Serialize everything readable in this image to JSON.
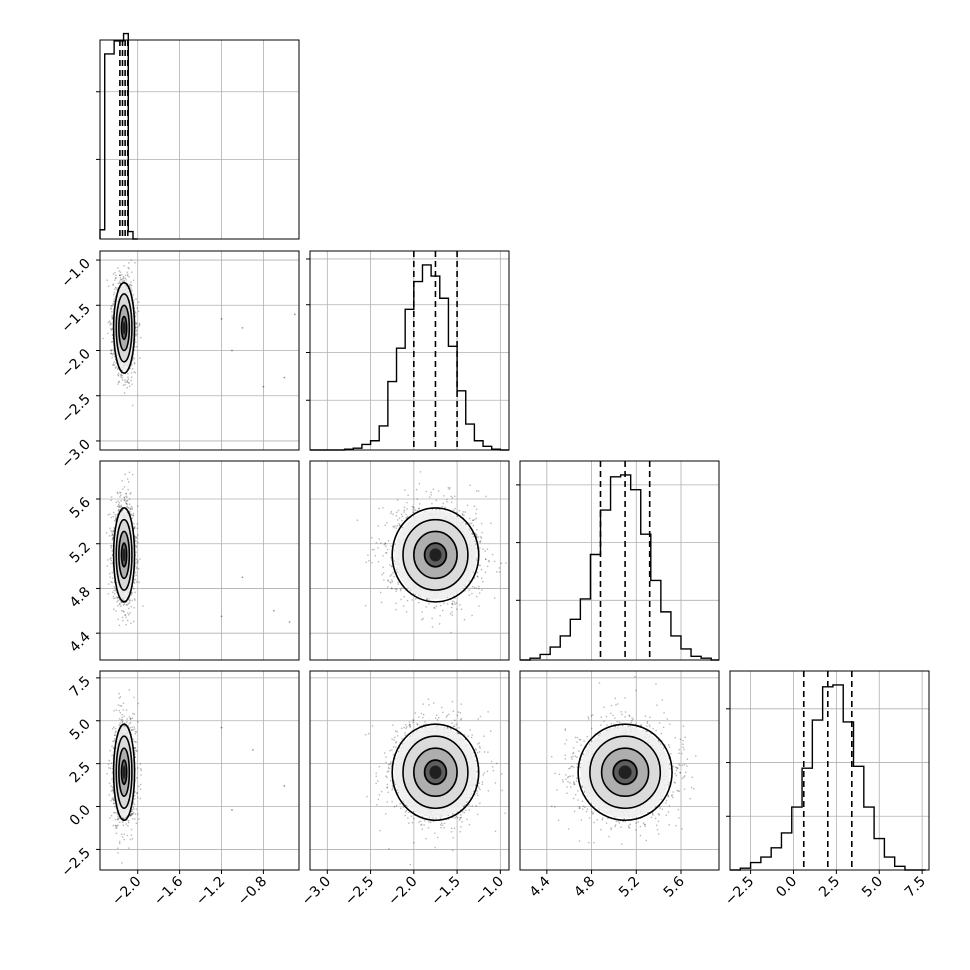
{
  "chart_data": {
    "type": "corner",
    "params": [
      {
        "xlim": [
          -2.36,
          -0.46
        ],
        "xticks": [
          "−2.0",
          "−1.6",
          "−1.2",
          "−0.8"
        ],
        "xtick_values": [
          -2.0,
          -1.6,
          -1.2,
          -0.8
        ]
      },
      {
        "xlim": [
          -3.2,
          -0.9
        ],
        "xticks": [
          "−3.0",
          "−2.5",
          "−2.0",
          "−1.5",
          "−1.0"
        ],
        "xtick_values": [
          -3.0,
          -2.5,
          -2.0,
          -1.5,
          -1.0
        ],
        "ylim": [
          -3.1,
          -0.9
        ],
        "yticks": [
          "−3.0",
          "−2.5",
          "−2.0",
          "−1.5",
          "−1.0"
        ],
        "ytick_values": [
          -3.0,
          -2.5,
          -2.0,
          -1.5,
          -1.0
        ]
      },
      {
        "xlim": [
          4.16,
          5.94
        ],
        "xticks": [
          "4.4",
          "4.8",
          "5.2",
          "5.6"
        ],
        "xtick_values": [
          4.4,
          4.8,
          5.2,
          5.6
        ],
        "ylim": [
          4.16,
          5.94
        ],
        "yticks": [
          "4.4",
          "4.8",
          "5.2",
          "5.6"
        ],
        "ytick_values": [
          4.4,
          4.8,
          5.2,
          5.6
        ]
      },
      {
        "xlim": [
          -3.7,
          7.9
        ],
        "xticks": [
          "−2.5",
          "0.0",
          "2.5",
          "5.0",
          "7.5"
        ],
        "xtick_values": [
          -2.5,
          0.0,
          2.5,
          5.0,
          7.5
        ],
        "ylim": [
          -3.7,
          7.9
        ],
        "yticks": [
          "−2.5",
          "0.0",
          "2.5",
          "5.0",
          "7.5"
        ],
        "ytick_values": [
          -2.5,
          0.0,
          2.5,
          5.0,
          7.5
        ]
      }
    ],
    "diagonal": [
      {
        "bin_edges": [
          -2.36,
          -2.315,
          -2.27,
          -2.225,
          -2.18,
          -2.135,
          -2.09,
          -2.045,
          -2.0
        ],
        "counts": [
          0.05,
          1.0,
          1.0,
          1.07,
          1.07,
          1.11,
          0.04,
          0.0
        ],
        "quantiles": [
          -2.17,
          -2.145,
          -2.12,
          -2.095
        ],
        "yticks_frac": [
          0.74,
          0.4
        ]
      },
      {
        "bin_edges": [
          -3.2,
          -3.1,
          -3.0,
          -2.9,
          -2.8,
          -2.7,
          -2.6,
          -2.5,
          -2.4,
          -2.3,
          -2.2,
          -2.1,
          -2.0,
          -1.9,
          -1.8,
          -1.7,
          -1.6,
          -1.5,
          -1.4,
          -1.3,
          -1.2,
          -1.1,
          -1.0,
          -0.9
        ],
        "counts": [
          0.0,
          0.0,
          0.0,
          0.0,
          0.004,
          0.01,
          0.03,
          0.05,
          0.13,
          0.37,
          0.55,
          0.76,
          0.91,
          1.0,
          0.94,
          0.82,
          0.56,
          0.32,
          0.14,
          0.05,
          0.02,
          0.004,
          0.0
        ],
        "quantiles": [
          -2.0,
          -1.75,
          -1.5
        ],
        "yticks_frac": [
          0.96,
          0.73,
          0.49,
          0.25
        ]
      },
      {
        "bin_edges": [
          4.16,
          4.25,
          4.34,
          4.43,
          4.52,
          4.61,
          4.7,
          4.79,
          4.88,
          4.97,
          5.06,
          5.15,
          5.24,
          5.33,
          5.42,
          5.51,
          5.6,
          5.69,
          5.78,
          5.87,
          5.94
        ],
        "counts": [
          0.0,
          0.01,
          0.03,
          0.07,
          0.13,
          0.22,
          0.33,
          0.57,
          0.81,
          0.99,
          1.0,
          0.92,
          0.68,
          0.43,
          0.26,
          0.13,
          0.06,
          0.02,
          0.01,
          0.0
        ],
        "quantiles": [
          4.88,
          5.1,
          5.32
        ],
        "yticks_frac": [
          0.88,
          0.59,
          0.3
        ]
      },
      {
        "bin_edges": [
          -3.7,
          -3.1,
          -2.5,
          -1.9,
          -1.3,
          -0.7,
          -0.1,
          0.5,
          1.1,
          1.7,
          2.3,
          2.9,
          3.5,
          4.1,
          4.7,
          5.3,
          5.9,
          6.5,
          7.1,
          7.7
        ],
        "counts": [
          0.0,
          0.01,
          0.04,
          0.07,
          0.12,
          0.2,
          0.34,
          0.55,
          0.81,
          0.99,
          1.0,
          0.8,
          0.56,
          0.34,
          0.17,
          0.07,
          0.02,
          0.0,
          0.0
        ],
        "quantiles": [
          0.6,
          2.0,
          3.4
        ],
        "yticks_frac": [
          0.81,
          0.54,
          0.27
        ]
      }
    ],
    "distributions": [
      {
        "mean": -2.13,
        "std": 0.05
      },
      {
        "mean": -1.75,
        "std": 0.25
      },
      {
        "mean": 5.1,
        "std": 0.21
      },
      {
        "mean": 2.0,
        "std": 1.4
      }
    ],
    "outliers_col0": [
      [
        -1.2,
        -1.65
      ],
      [
        -1.0,
        -1.75
      ],
      [
        -0.6,
        -2.3
      ],
      [
        -0.5,
        -1.6
      ],
      [
        -1.1,
        -2.0
      ],
      [
        -0.8,
        -2.4
      ]
    ],
    "outliers_col0_row2": [
      [
        -1.0,
        4.9
      ],
      [
        -1.2,
        4.55
      ],
      [
        -0.7,
        4.6
      ],
      [
        -0.55,
        4.5
      ]
    ],
    "outliers_col0_row3": [
      [
        -0.9,
        3.3
      ],
      [
        -1.2,
        4.6
      ],
      [
        -0.6,
        1.2
      ],
      [
        -1.1,
        -0.2
      ]
    ],
    "grid": true
  }
}
